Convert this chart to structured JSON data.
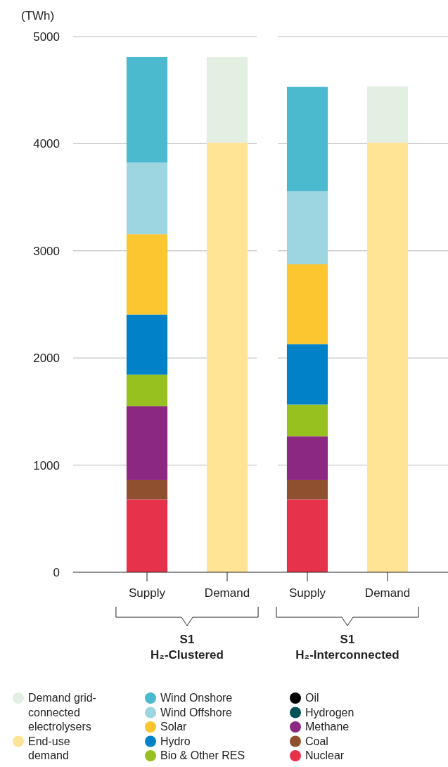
{
  "chart_data": {
    "type": "bar",
    "stacked": true,
    "ylabel": "(TWh)",
    "categories": [
      "Supply",
      "Demand",
      "Supply",
      "Demand"
    ],
    "ylim": [
      0,
      5000
    ],
    "yticks": [
      0,
      1000,
      2000,
      3000,
      4000,
      5000
    ],
    "grid": "y",
    "legend": "bottom",
    "annotations": [
      "S1\nH₂-Clustered",
      "S1\nH₂-Interconnected"
    ],
    "series": [
      {
        "name": "Nuclear",
        "color": "#e6324b",
        "values": [
          680,
          null,
          680,
          null
        ]
      },
      {
        "name": "Coal",
        "color": "#8e502e",
        "values": [
          180,
          null,
          180,
          null
        ]
      },
      {
        "name": "Methane",
        "color": "#8a2882",
        "values": [
          690,
          null,
          410,
          null
        ]
      },
      {
        "name": "Hydrogen",
        "color": "#00505a",
        "values": [
          0,
          null,
          0,
          null
        ]
      },
      {
        "name": "Oil",
        "color": "#000000",
        "values": [
          0,
          null,
          0,
          null
        ]
      },
      {
        "name": "Bio & Other RES",
        "color": "#96c11f",
        "values": [
          295,
          null,
          295,
          null
        ]
      },
      {
        "name": "Hydro",
        "color": "#0081c8",
        "values": [
          560,
          null,
          565,
          null
        ]
      },
      {
        "name": "Solar",
        "color": "#fcc631",
        "values": [
          750,
          null,
          745,
          null
        ]
      },
      {
        "name": "Wind Offshore",
        "color": "#9dd5e1",
        "values": [
          670,
          null,
          680,
          null
        ]
      },
      {
        "name": "Wind Onshore",
        "color": "#4bbace",
        "values": [
          985,
          null,
          975,
          null
        ]
      },
      {
        "name": "End-use demand",
        "color": "#fee494",
        "values": [
          null,
          4010,
          null,
          4010
        ]
      },
      {
        "name": "Demand grid-connected electrolysers",
        "color": "#e3efe3",
        "values": [
          null,
          800,
          null,
          525
        ]
      }
    ]
  }
}
